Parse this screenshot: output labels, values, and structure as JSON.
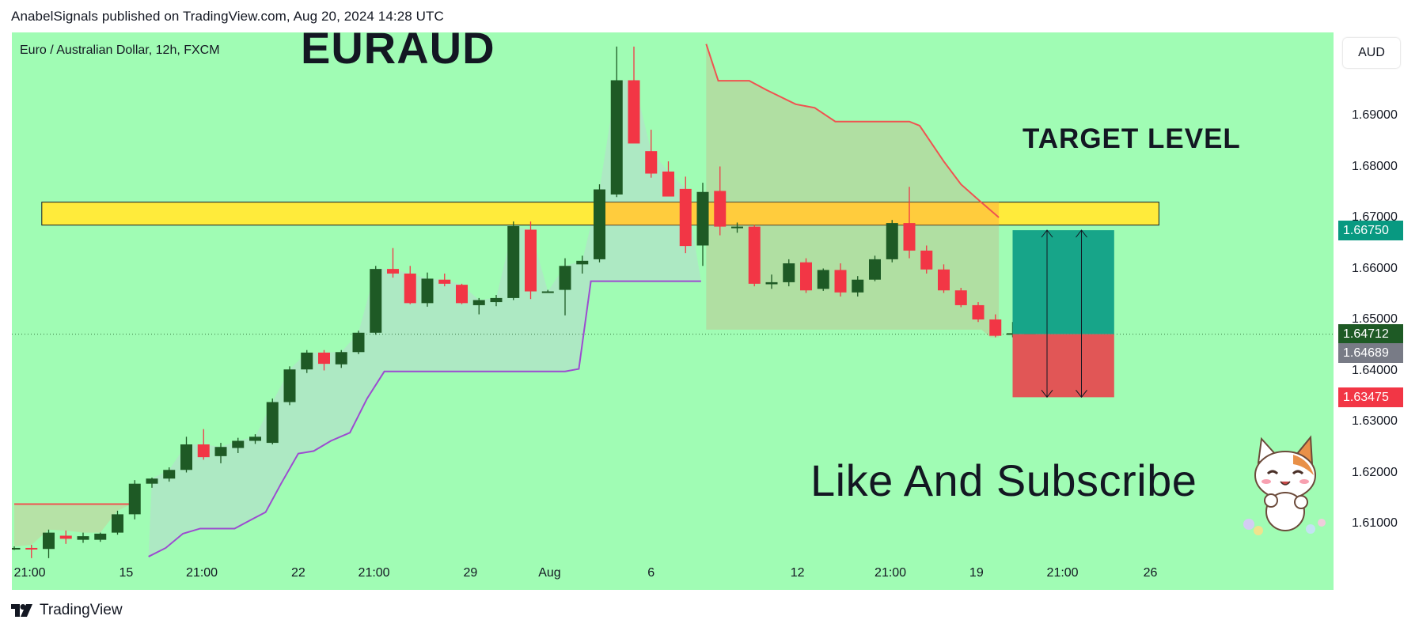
{
  "header": {
    "published_line": "AnabelSignals published on TradingView.com, Aug 20, 2024 14:28 UTC"
  },
  "chart_header": {
    "instrument": "Euro / Australian Dollar, 12h, FXCM",
    "currency_button": "AUD"
  },
  "annotations": {
    "title": "EURAUD",
    "target_label": "TARGET LEVEL",
    "call_to_action": "Like And Subscribe"
  },
  "price_badges": [
    {
      "value": "1.66750",
      "color": "#089981"
    },
    {
      "value": "1.64712",
      "color": "#1e5a25"
    },
    {
      "value": "1.64689",
      "color": "#787b86"
    },
    {
      "value": "1.63475",
      "color": "#f23645"
    }
  ],
  "footer": {
    "brand": "TradingView"
  },
  "colors": {
    "plot_background": "#a0fcb4",
    "bull_candle": "#1e5a25",
    "bear_candle": "#f23645",
    "upper_line": "#ef5350",
    "lower_line": "#9c4cd0",
    "target_zone": "#ffeb3b",
    "profit_zone": "#17a589",
    "loss_zone": "#e15656"
  },
  "chart_data": {
    "type": "candlestick",
    "title": "EURAUD",
    "symbol": "Euro / Australian Dollar, 12h, FXCM",
    "ylim": [
      1.6025,
      1.7035
    ],
    "y_ticks": [
      "1.61000",
      "1.62000",
      "1.63000",
      "1.64000",
      "1.65000",
      "1.66000",
      "1.67000",
      "1.68000",
      "1.69000"
    ],
    "y_tick_values": [
      1.61,
      1.62,
      1.63,
      1.64,
      1.65,
      1.66,
      1.67,
      1.68,
      1.69
    ],
    "x_ticks": [
      {
        "label": "21:00",
        "index": 0.9
      },
      {
        "label": "15",
        "index": 6.5
      },
      {
        "label": "21:00",
        "index": 10.9
      },
      {
        "label": "22",
        "index": 16.5
      },
      {
        "label": "21:00",
        "index": 20.9
      },
      {
        "label": "29",
        "index": 26.5
      },
      {
        "label": "Aug",
        "index": 31.1
      },
      {
        "label": "6",
        "index": 37.0
      },
      {
        "label": "12",
        "index": 45.5
      },
      {
        "label": "21:00",
        "index": 50.9
      },
      {
        "label": "19",
        "index": 55.9
      },
      {
        "label": "21:00",
        "index": 60.9
      },
      {
        "label": "26",
        "index": 66.0
      }
    ],
    "candles": [
      {
        "o": 1.6052,
        "h": 1.6055,
        "l": 1.6048,
        "c": 1.6052
      },
      {
        "o": 1.6052,
        "h": 1.6058,
        "l": 1.6032,
        "c": 1.605
      },
      {
        "o": 1.605,
        "h": 1.6088,
        "l": 1.6032,
        "c": 1.6082
      },
      {
        "o": 1.6076,
        "h": 1.6086,
        "l": 1.606,
        "c": 1.607
      },
      {
        "o": 1.6068,
        "h": 1.6082,
        "l": 1.6062,
        "c": 1.6075
      },
      {
        "o": 1.6068,
        "h": 1.6082,
        "l": 1.6064,
        "c": 1.608
      },
      {
        "o": 1.6082,
        "h": 1.6125,
        "l": 1.6078,
        "c": 1.6118
      },
      {
        "o": 1.6118,
        "h": 1.6185,
        "l": 1.6108,
        "c": 1.6178
      },
      {
        "o": 1.6178,
        "h": 1.619,
        "l": 1.617,
        "c": 1.6188
      },
      {
        "o": 1.6188,
        "h": 1.621,
        "l": 1.6182,
        "c": 1.6205
      },
      {
        "o": 1.6205,
        "h": 1.627,
        "l": 1.62,
        "c": 1.6255
      },
      {
        "o": 1.6255,
        "h": 1.6285,
        "l": 1.6225,
        "c": 1.623
      },
      {
        "o": 1.6232,
        "h": 1.6258,
        "l": 1.6218,
        "c": 1.625
      },
      {
        "o": 1.6248,
        "h": 1.6268,
        "l": 1.6238,
        "c": 1.6262
      },
      {
        "o": 1.6262,
        "h": 1.6275,
        "l": 1.6256,
        "c": 1.627
      },
      {
        "o": 1.6258,
        "h": 1.6345,
        "l": 1.6255,
        "c": 1.6338
      },
      {
        "o": 1.6338,
        "h": 1.6408,
        "l": 1.6332,
        "c": 1.6402
      },
      {
        "o": 1.6402,
        "h": 1.644,
        "l": 1.6395,
        "c": 1.6435
      },
      {
        "o": 1.6435,
        "h": 1.644,
        "l": 1.64,
        "c": 1.6413
      },
      {
        "o": 1.6412,
        "h": 1.644,
        "l": 1.6405,
        "c": 1.6436
      },
      {
        "o": 1.6436,
        "h": 1.6478,
        "l": 1.6432,
        "c": 1.6474
      },
      {
        "o": 1.6474,
        "h": 1.6605,
        "l": 1.647,
        "c": 1.6599
      },
      {
        "o": 1.6599,
        "h": 1.664,
        "l": 1.6582,
        "c": 1.659
      },
      {
        "o": 1.659,
        "h": 1.6605,
        "l": 1.653,
        "c": 1.6532
      },
      {
        "o": 1.6532,
        "h": 1.6592,
        "l": 1.6525,
        "c": 1.658
      },
      {
        "o": 1.6578,
        "h": 1.659,
        "l": 1.6565,
        "c": 1.657
      },
      {
        "o": 1.6568,
        "h": 1.657,
        "l": 1.653,
        "c": 1.6532
      },
      {
        "o": 1.6528,
        "h": 1.6542,
        "l": 1.651,
        "c": 1.6538
      },
      {
        "o": 1.6534,
        "h": 1.6548,
        "l": 1.6526,
        "c": 1.6542
      },
      {
        "o": 1.6542,
        "h": 1.6692,
        "l": 1.6538,
        "c": 1.6683
      },
      {
        "o": 1.6676,
        "h": 1.6692,
        "l": 1.654,
        "c": 1.6555
      },
      {
        "o": 1.6555,
        "h": 1.6558,
        "l": 1.6552,
        "c": 1.6555
      },
      {
        "o": 1.6558,
        "h": 1.662,
        "l": 1.6508,
        "c": 1.6605
      },
      {
        "o": 1.6608,
        "h": 1.6625,
        "l": 1.659,
        "c": 1.6615
      },
      {
        "o": 1.6618,
        "h": 1.6765,
        "l": 1.6612,
        "c": 1.6755
      },
      {
        "o": 1.6745,
        "h": 1.7035,
        "l": 1.674,
        "c": 1.6969
      },
      {
        "o": 1.6969,
        "h": 1.7035,
        "l": 1.6848,
        "c": 1.6845
      },
      {
        "o": 1.683,
        "h": 1.6872,
        "l": 1.6778,
        "c": 1.6786
      },
      {
        "o": 1.679,
        "h": 1.681,
        "l": 1.6742,
        "c": 1.6741
      },
      {
        "o": 1.6756,
        "h": 1.678,
        "l": 1.663,
        "c": 1.6644
      },
      {
        "o": 1.6645,
        "h": 1.6768,
        "l": 1.6605,
        "c": 1.675
      },
      {
        "o": 1.6752,
        "h": 1.68,
        "l": 1.6665,
        "c": 1.6682
      },
      {
        "o": 1.6682,
        "h": 1.669,
        "l": 1.667,
        "c": 1.6682
      },
      {
        "o": 1.6682,
        "h": 1.6685,
        "l": 1.6565,
        "c": 1.657
      },
      {
        "o": 1.6569,
        "h": 1.6588,
        "l": 1.656,
        "c": 1.6573
      },
      {
        "o": 1.6573,
        "h": 1.6618,
        "l": 1.6565,
        "c": 1.661
      },
      {
        "o": 1.6612,
        "h": 1.662,
        "l": 1.6552,
        "c": 1.6557
      },
      {
        "o": 1.656,
        "h": 1.66,
        "l": 1.6556,
        "c": 1.6597
      },
      {
        "o": 1.6597,
        "h": 1.661,
        "l": 1.6545,
        "c": 1.6553
      },
      {
        "o": 1.6553,
        "h": 1.6585,
        "l": 1.6545,
        "c": 1.6578
      },
      {
        "o": 1.6578,
        "h": 1.6625,
        "l": 1.6575,
        "c": 1.6618
      },
      {
        "o": 1.6618,
        "h": 1.6695,
        "l": 1.6612,
        "c": 1.6689
      },
      {
        "o": 1.6689,
        "h": 1.676,
        "l": 1.662,
        "c": 1.6635
      },
      {
        "o": 1.6635,
        "h": 1.6645,
        "l": 1.659,
        "c": 1.6598
      },
      {
        "o": 1.6598,
        "h": 1.6608,
        "l": 1.6552,
        "c": 1.6557
      },
      {
        "o": 1.6557,
        "h": 1.6562,
        "l": 1.6524,
        "c": 1.6528
      },
      {
        "o": 1.6528,
        "h": 1.6534,
        "l": 1.6495,
        "c": 1.65
      },
      {
        "o": 1.65,
        "h": 1.651,
        "l": 1.6465,
        "c": 1.6468
      },
      {
        "o": 1.647,
        "h": 1.6495,
        "l": 1.6465,
        "c": 1.6473
      },
      {
        "o": 1.647,
        "h": 1.6478,
        "l": 1.646,
        "c": 1.6475
      }
    ],
    "upper_line": {
      "segments": [
        [
          [
            0,
            1.6138
          ],
          [
            6.8,
            1.6138
          ]
        ],
        [
          [
            40.2,
            1.704
          ],
          [
            40.9,
            1.6968
          ],
          [
            42.7,
            1.6968
          ],
          [
            43.7,
            1.695
          ],
          [
            45.4,
            1.6922
          ],
          [
            46.5,
            1.6915
          ],
          [
            47.7,
            1.6888
          ],
          [
            49.4,
            1.6888
          ],
          [
            52.0,
            1.6888
          ],
          [
            52.6,
            1.688
          ],
          [
            53.0,
            1.686
          ],
          [
            54.0,
            1.681
          ],
          [
            55.0,
            1.6765
          ],
          [
            56.0,
            1.6735
          ],
          [
            57.2,
            1.67
          ]
        ]
      ]
    },
    "lower_line": {
      "segments": [
        [
          [
            7.8,
            1.6035
          ],
          [
            8.8,
            1.6052
          ],
          [
            9.8,
            1.608
          ],
          [
            10.8,
            1.609
          ],
          [
            11.8,
            1.609
          ],
          [
            12.8,
            1.609
          ],
          [
            13.8,
            1.6108
          ],
          [
            14.6,
            1.6122
          ],
          [
            15.5,
            1.6178
          ],
          [
            16.5,
            1.6237
          ],
          [
            17.4,
            1.6242
          ],
          [
            18.4,
            1.6262
          ],
          [
            19.5,
            1.6278
          ],
          [
            20.5,
            1.6345
          ],
          [
            21.5,
            1.6398
          ],
          [
            30.0,
            1.6398
          ],
          [
            32.0,
            1.6398
          ],
          [
            32.8,
            1.6403
          ],
          [
            33.5,
            1.6575
          ],
          [
            39.9,
            1.6575
          ]
        ]
      ]
    },
    "shaded_regions": [
      {
        "kind": "upper",
        "from": 0,
        "to": 6.8,
        "top": 1.6138
      },
      {
        "kind": "lower",
        "from": 7.8,
        "to": 39.9
      },
      {
        "kind": "upper",
        "from": 40.2,
        "to": 57.2
      }
    ],
    "target_zone": {
      "from": 1.6,
      "to": 66.5,
      "top": 1.673,
      "bottom": 1.6685
    },
    "position": {
      "from": 58.0,
      "to": 63.9,
      "entry": 1.64712,
      "target": 1.6675,
      "stop": 1.63475,
      "arrows_at": [
        60.0,
        62.0
      ]
    },
    "last_price_line": 1.64712
  }
}
